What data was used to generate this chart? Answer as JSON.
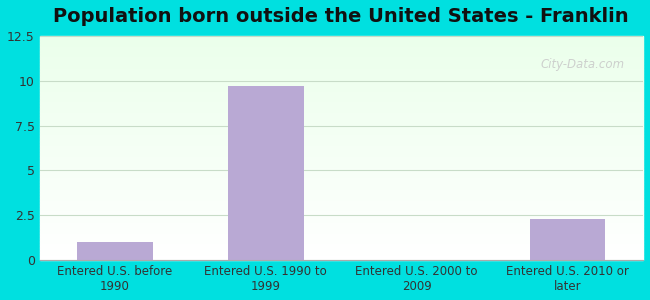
{
  "title": "Population born outside the United States - Franklin",
  "categories": [
    "Entered U.S. before\n1990",
    "Entered U.S. 1990 to\n1999",
    "Entered U.S. 2000 to\n2009",
    "Entered U.S. 2010 or\nlater"
  ],
  "values": [
    1.0,
    9.7,
    0.0,
    2.3
  ],
  "bar_color": "#b9a9d4",
  "ylim": [
    0,
    12.5
  ],
  "yticks": [
    0,
    2.5,
    5.0,
    7.5,
    10.0,
    12.5
  ],
  "background_outer": "#00e0e0",
  "grid_color": "#c8dcc8",
  "tick_label_color": "#333333",
  "title_color": "#111111",
  "title_fontsize": 14,
  "watermark_text": "City-Data.com",
  "watermark_color": "#c8c8c8",
  "xlim": [
    -0.5,
    3.5
  ],
  "bar_width": 0.5
}
